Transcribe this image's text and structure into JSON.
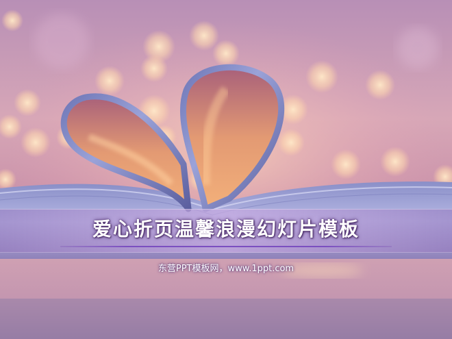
{
  "slide": {
    "title": "爱心折页温馨浪漫幻灯片模板",
    "subtitle": "东营PPT模板网，www.1ppt.com"
  },
  "colors": {
    "accent": "#7b4fc0",
    "band": "#b497d6",
    "background_top": "#c9a3c8",
    "background_bottom": "#6a5a8a"
  }
}
